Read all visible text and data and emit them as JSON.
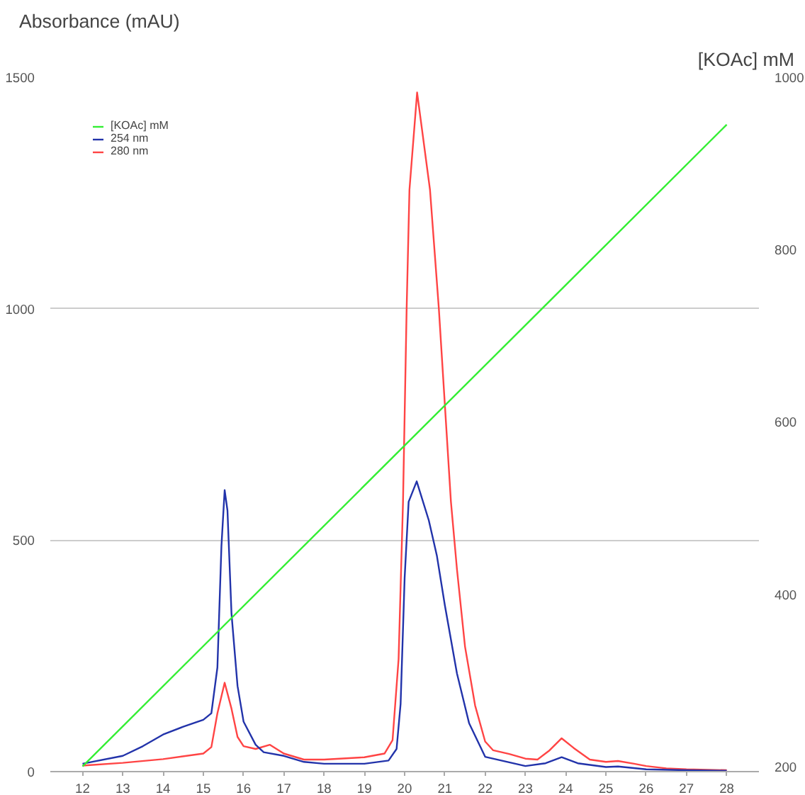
{
  "chart_data": {
    "type": "line",
    "ylabel": "Absorbance (mAU)",
    "y2label": "[KOAc] mM",
    "xlim": [
      11.2,
      28.8
    ],
    "xticks": [
      12,
      13,
      14,
      15,
      16,
      17,
      18,
      19,
      20,
      21,
      22,
      23,
      24,
      25,
      26,
      27,
      28
    ],
    "ylim": [
      0,
      1500
    ],
    "yticks": [
      0,
      500,
      1000,
      1500
    ],
    "y2lim": [
      194,
      1000
    ],
    "y2ticks": [
      200,
      400,
      600,
      800,
      1000
    ],
    "grid": "y",
    "legend": "top left",
    "marker": "none",
    "line_style": "solid",
    "series": [
      {
        "name": "[KOAc] mM",
        "color": "#33ee33",
        "axis": "y2",
        "x": [
          12,
          28
        ],
        "values": [
          200,
          945
        ]
      },
      {
        "name": "254 nm",
        "color": "#2233aa",
        "x": [
          12,
          13,
          13.5,
          14,
          14.5,
          15,
          15.2,
          15.35,
          15.45,
          15.53,
          15.6,
          15.7,
          15.85,
          16,
          16.3,
          16.5,
          17,
          17.5,
          18,
          19,
          19.6,
          19.8,
          19.9,
          20,
          20.1,
          20.3,
          20.6,
          20.8,
          21,
          21.3,
          21.6,
          22,
          22.5,
          23,
          23.5,
          23.9,
          24.3,
          25,
          25.3,
          26,
          27,
          28
        ],
        "values": [
          17,
          34,
          55,
          80,
          97,
          112,
          126,
          225,
          487,
          608,
          564,
          341,
          185,
          108,
          58,
          42,
          34,
          21,
          17,
          17,
          24,
          49,
          146,
          418,
          583,
          627,
          543,
          467,
          359,
          212,
          105,
          32,
          22,
          12,
          18,
          31,
          18,
          10,
          11,
          5,
          3,
          2
        ]
      },
      {
        "name": "280 nm",
        "color": "#ff4444",
        "x": [
          12,
          13,
          14,
          15,
          15.2,
          15.35,
          15.53,
          15.7,
          15.85,
          16,
          16.3,
          16.65,
          17,
          17.5,
          18,
          19,
          19.5,
          19.7,
          19.85,
          19.96,
          20.05,
          20.12,
          20.31,
          20.63,
          20.85,
          21.15,
          21.3,
          21.5,
          21.75,
          22,
          22.2,
          22.6,
          23,
          23.3,
          23.6,
          23.9,
          24.2,
          24.6,
          25,
          25.3,
          25.7,
          26,
          26.5,
          27,
          28
        ],
        "values": [
          13,
          19,
          27,
          39,
          53,
          126,
          192,
          136,
          75,
          55,
          49,
          58,
          39,
          26,
          26,
          31,
          39,
          68,
          243,
          583,
          1000,
          1257,
          1467,
          1257,
          1000,
          583,
          437,
          270,
          143,
          65,
          46,
          38,
          28,
          26,
          46,
          72,
          51,
          26,
          21,
          23,
          17,
          12,
          7,
          5,
          3
        ]
      }
    ]
  }
}
